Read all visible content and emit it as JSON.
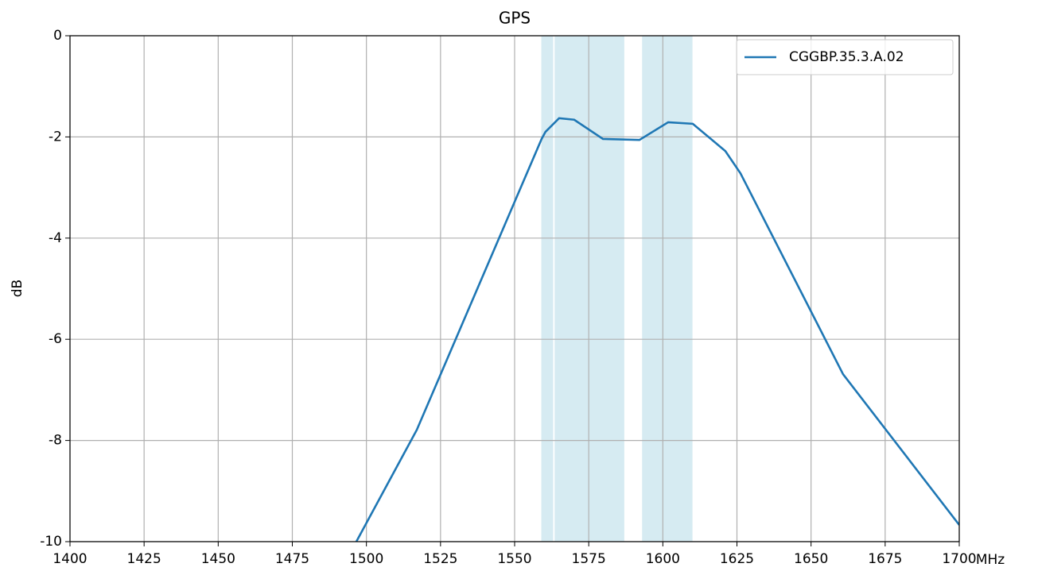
{
  "chart_data": {
    "type": "line",
    "title": "GPS",
    "xlabel": "MHz",
    "ylabel": "dB",
    "x": [
      1496.6,
      1517,
      1559.1,
      1560.4,
      1565,
      1570.1,
      1579.8,
      1592.1,
      1601.8,
      1610.1,
      1621.1,
      1626.2,
      1660.8,
      1700
    ],
    "series": [
      {
        "name": "CGGBP.35.3.A.02",
        "color": "#1f77b4",
        "values": [
          -10,
          -7.79,
          -2.04,
          -1.9,
          -1.63,
          -1.66,
          -2.04,
          -2.06,
          -1.71,
          -1.74,
          -2.28,
          -2.72,
          -6.69,
          -9.67
        ]
      }
    ],
    "shaded_regions": [
      [
        1559,
        1563
      ],
      [
        1563.5,
        1587
      ],
      [
        1593,
        1610
      ]
    ],
    "shade_color": "#add8e6",
    "xlim": [
      1400,
      1700
    ],
    "xticks": [
      1400,
      1425,
      1450,
      1475,
      1500,
      1525,
      1550,
      1575,
      1600,
      1625,
      1650,
      1675,
      1700
    ],
    "ylim": [
      -10,
      0
    ],
    "yticks": [
      -10,
      -8,
      -6,
      -4,
      -2,
      0
    ],
    "grid": true,
    "legend": "upper right"
  }
}
